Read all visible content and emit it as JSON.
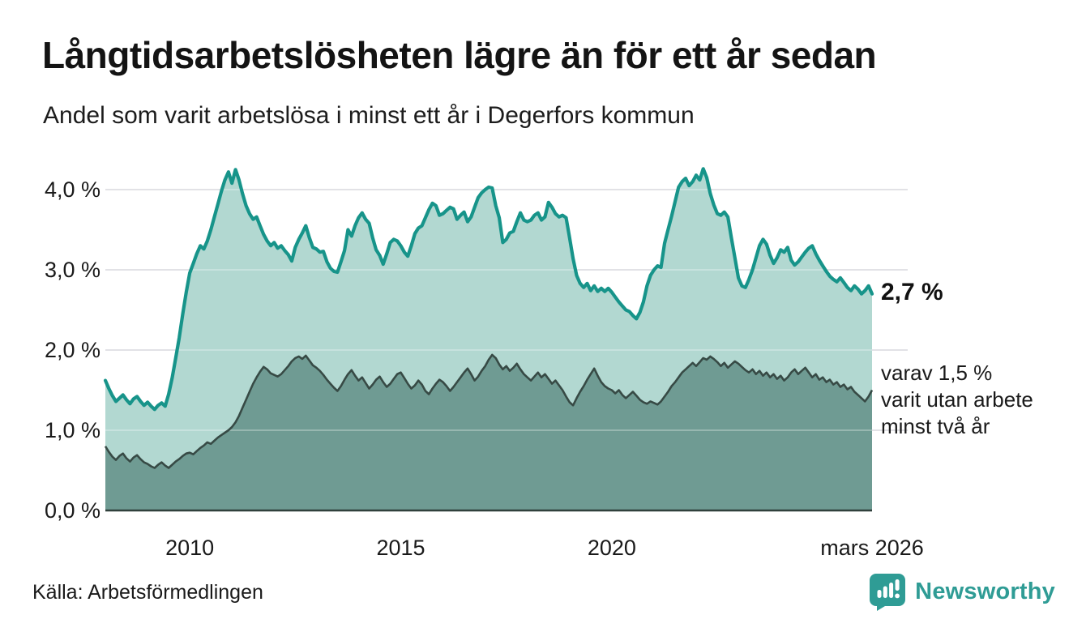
{
  "header": {
    "title": "Långtidsarbetslösheten lägre än för ett år sedan",
    "subtitle": "Andel som varit arbetslösa i minst ett år i Degerfors kommun"
  },
  "chart_data": {
    "type": "area",
    "title": "Långtidsarbetslösheten lägre än för ett år sedan",
    "subtitle": "Andel som varit arbetslösa i minst ett år i Degerfors kommun",
    "x_unit": "month",
    "x_start": "2008-01",
    "x_end": "2026-03",
    "ylim": [
      0,
      4.4
    ],
    "grid": true,
    "legend": "none",
    "y_ticks": [
      {
        "label": "4,0 %",
        "value": 4.0
      },
      {
        "label": "3,0 %",
        "value": 3.0
      },
      {
        "label": "2,0 %",
        "value": 2.0
      },
      {
        "label": "1,0 %",
        "value": 1.0
      },
      {
        "label": "0,0 %",
        "value": 0.0
      }
    ],
    "x_ticks": [
      {
        "label": "2010",
        "month_index": 24
      },
      {
        "label": "2015",
        "month_index": 84
      },
      {
        "label": "2020",
        "month_index": 144
      },
      {
        "label": "mars 2026",
        "month_index": 218
      }
    ],
    "series": [
      {
        "name": "Andel arbetslösa minst ett år",
        "line_color": "#17948a",
        "fill_color": "#b2d8d1",
        "last_value": 2.7,
        "values": [
          1.62,
          1.52,
          1.43,
          1.36,
          1.4,
          1.44,
          1.38,
          1.33,
          1.39,
          1.42,
          1.36,
          1.31,
          1.35,
          1.3,
          1.26,
          1.31,
          1.34,
          1.3,
          1.45,
          1.65,
          1.9,
          2.15,
          2.45,
          2.72,
          2.96,
          3.08,
          3.2,
          3.3,
          3.26,
          3.36,
          3.5,
          3.66,
          3.82,
          3.98,
          4.12,
          4.22,
          4.08,
          4.25,
          4.12,
          3.95,
          3.8,
          3.7,
          3.63,
          3.66,
          3.55,
          3.44,
          3.36,
          3.3,
          3.34,
          3.27,
          3.3,
          3.24,
          3.19,
          3.11,
          3.28,
          3.38,
          3.46,
          3.55,
          3.4,
          3.28,
          3.26,
          3.22,
          3.23,
          3.1,
          3.02,
          2.98,
          2.97,
          3.1,
          3.24,
          3.5,
          3.42,
          3.55,
          3.65,
          3.71,
          3.63,
          3.58,
          3.4,
          3.25,
          3.18,
          3.07,
          3.2,
          3.34,
          3.38,
          3.36,
          3.3,
          3.22,
          3.17,
          3.3,
          3.45,
          3.52,
          3.55,
          3.65,
          3.75,
          3.83,
          3.8,
          3.68,
          3.7,
          3.74,
          3.78,
          3.76,
          3.63,
          3.68,
          3.72,
          3.6,
          3.66,
          3.78,
          3.9,
          3.96,
          4.0,
          4.03,
          4.02,
          3.8,
          3.65,
          3.34,
          3.38,
          3.46,
          3.48,
          3.6,
          3.71,
          3.62,
          3.6,
          3.62,
          3.68,
          3.71,
          3.62,
          3.66,
          3.84,
          3.78,
          3.7,
          3.66,
          3.68,
          3.65,
          3.4,
          3.14,
          2.93,
          2.83,
          2.78,
          2.83,
          2.74,
          2.8,
          2.73,
          2.77,
          2.73,
          2.77,
          2.72,
          2.66,
          2.6,
          2.55,
          2.5,
          2.48,
          2.43,
          2.39,
          2.47,
          2.6,
          2.8,
          2.93,
          3.0,
          3.05,
          3.03,
          3.33,
          3.5,
          3.67,
          3.85,
          4.03,
          4.1,
          4.14,
          4.05,
          4.1,
          4.18,
          4.12,
          4.26,
          4.15,
          3.95,
          3.81,
          3.7,
          3.68,
          3.72,
          3.66,
          3.4,
          3.15,
          2.9,
          2.8,
          2.78,
          2.88,
          3.0,
          3.15,
          3.3,
          3.38,
          3.32,
          3.18,
          3.08,
          3.15,
          3.25,
          3.22,
          3.28,
          3.12,
          3.06,
          3.1,
          3.16,
          3.22,
          3.27,
          3.3,
          3.2,
          3.12,
          3.05,
          2.98,
          2.92,
          2.88,
          2.85,
          2.9,
          2.84,
          2.78,
          2.74,
          2.8,
          2.76,
          2.7,
          2.74,
          2.8,
          2.7
        ]
      },
      {
        "name": "Andel utan arbete minst två år",
        "line_color": "#374a45",
        "fill_color": "#6f9b93",
        "last_value": 1.5,
        "values": [
          0.8,
          0.73,
          0.67,
          0.63,
          0.68,
          0.71,
          0.65,
          0.61,
          0.66,
          0.69,
          0.64,
          0.6,
          0.58,
          0.55,
          0.53,
          0.57,
          0.6,
          0.56,
          0.53,
          0.57,
          0.61,
          0.64,
          0.68,
          0.71,
          0.72,
          0.7,
          0.74,
          0.78,
          0.81,
          0.85,
          0.83,
          0.87,
          0.91,
          0.94,
          0.97,
          1.0,
          1.04,
          1.1,
          1.18,
          1.28,
          1.38,
          1.48,
          1.58,
          1.66,
          1.73,
          1.79,
          1.76,
          1.71,
          1.69,
          1.67,
          1.7,
          1.75,
          1.8,
          1.86,
          1.9,
          1.92,
          1.89,
          1.93,
          1.87,
          1.81,
          1.78,
          1.74,
          1.69,
          1.63,
          1.58,
          1.53,
          1.49,
          1.55,
          1.63,
          1.7,
          1.75,
          1.68,
          1.62,
          1.66,
          1.59,
          1.52,
          1.57,
          1.63,
          1.67,
          1.6,
          1.54,
          1.58,
          1.64,
          1.7,
          1.72,
          1.65,
          1.58,
          1.52,
          1.56,
          1.62,
          1.57,
          1.49,
          1.45,
          1.52,
          1.58,
          1.63,
          1.6,
          1.55,
          1.49,
          1.54,
          1.6,
          1.66,
          1.72,
          1.77,
          1.7,
          1.62,
          1.67,
          1.74,
          1.8,
          1.88,
          1.94,
          1.9,
          1.82,
          1.76,
          1.8,
          1.74,
          1.78,
          1.83,
          1.76,
          1.7,
          1.66,
          1.62,
          1.67,
          1.72,
          1.66,
          1.7,
          1.64,
          1.58,
          1.62,
          1.56,
          1.5,
          1.42,
          1.35,
          1.31,
          1.4,
          1.48,
          1.55,
          1.63,
          1.7,
          1.77,
          1.68,
          1.6,
          1.55,
          1.52,
          1.5,
          1.46,
          1.5,
          1.44,
          1.4,
          1.44,
          1.48,
          1.43,
          1.38,
          1.35,
          1.33,
          1.36,
          1.34,
          1.32,
          1.36,
          1.42,
          1.48,
          1.55,
          1.6,
          1.66,
          1.72,
          1.76,
          1.8,
          1.84,
          1.8,
          1.85,
          1.9,
          1.88,
          1.92,
          1.89,
          1.85,
          1.8,
          1.84,
          1.78,
          1.82,
          1.86,
          1.83,
          1.79,
          1.75,
          1.72,
          1.76,
          1.7,
          1.74,
          1.68,
          1.72,
          1.66,
          1.7,
          1.64,
          1.68,
          1.62,
          1.66,
          1.72,
          1.76,
          1.7,
          1.74,
          1.78,
          1.72,
          1.66,
          1.7,
          1.63,
          1.66,
          1.6,
          1.63,
          1.57,
          1.6,
          1.54,
          1.57,
          1.51,
          1.54,
          1.48,
          1.44,
          1.4,
          1.36,
          1.42,
          1.5
        ]
      }
    ],
    "annotations": {
      "latest_value_label": "2,7 %",
      "secondary_lines": [
        "varav 1,5 %",
        "varit utan arbete",
        "minst två år"
      ]
    }
  },
  "footer": {
    "source_label": "Källa: Arbetsförmedlingen",
    "brand_name": "Newsworthy"
  },
  "colors": {
    "primary_line": "#17948a",
    "primary_fill": "#b2d8d1",
    "secondary_line": "#374a45",
    "secondary_fill": "#6f9b93",
    "gridline": "#dedee2",
    "baseline": "#30403c",
    "brand_teal": "#2f9c95"
  }
}
